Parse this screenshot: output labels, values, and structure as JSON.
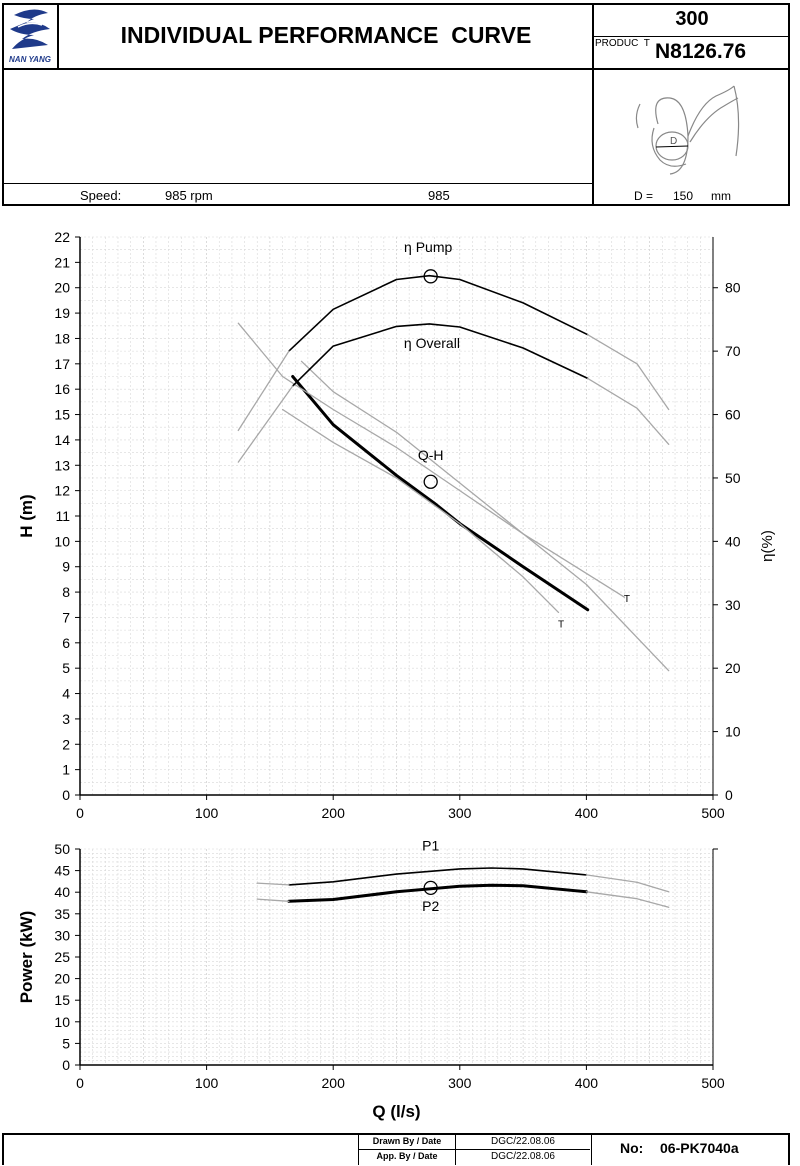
{
  "header": {
    "logo_text": "NAN YANG",
    "title": "INDIVIDUAL PERFORMANCE  CURVE",
    "size": "300",
    "product_label": "PRODUC  T",
    "product_code": "N8126.76",
    "speed_label": "Speed:",
    "speed_value": "985 rpm",
    "speed_center": "985",
    "diameter_label": "D =",
    "diameter_value": "150",
    "diameter_unit": "mm",
    "impeller_label": "D"
  },
  "footer": {
    "drawn_label": "Drawn By / Date",
    "drawn_value": "DGC/22.08.06",
    "app_label": "App. By / Date",
    "app_value": "DGC/22.08.06",
    "no_label": "No:",
    "no_value": "06-PK7040a"
  },
  "chart_data": [
    {
      "type": "line",
      "xlabel": "",
      "ylabel": "H (m)",
      "y2label": "η(%)",
      "xlim": [
        0,
        500
      ],
      "ylim": [
        0,
        22
      ],
      "y2lim": [
        0,
        88
      ],
      "xticks": [
        0,
        100,
        200,
        300,
        400,
        500
      ],
      "yticks": [
        0,
        1,
        2,
        3,
        4,
        5,
        6,
        7,
        8,
        9,
        10,
        11,
        12,
        13,
        14,
        15,
        16,
        17,
        18,
        19,
        20,
        21,
        22
      ],
      "y2ticks": [
        0,
        10,
        20,
        30,
        40,
        50,
        60,
        70,
        80
      ],
      "grid": true,
      "series": [
        {
          "name": "Q-H",
          "axis": "left",
          "style": "bold",
          "x": [
            168,
            200,
            250,
            280,
            300,
            350,
            401
          ],
          "y": [
            16.5,
            14.6,
            12.6,
            11.5,
            10.7,
            9.0,
            7.3
          ]
        },
        {
          "name": "",
          "axis": "left",
          "style": "thin-gray",
          "x": [
            125,
            160,
            200,
            250,
            300,
            350,
            400,
            465
          ],
          "y": [
            18.6,
            16.5,
            15.2,
            13.7,
            12.0,
            10.3,
            8.3,
            4.9
          ]
        },
        {
          "name": "",
          "axis": "left",
          "style": "thin-gray",
          "x": [
            175,
            200,
            250,
            300,
            350,
            430
          ],
          "y": [
            17.1,
            15.9,
            14.3,
            12.3,
            10.3,
            7.8
          ]
        },
        {
          "name": "",
          "axis": "left",
          "style": "thin-gray",
          "x": [
            160,
            200,
            250,
            300,
            350,
            378
          ],
          "y": [
            15.2,
            13.9,
            12.5,
            10.7,
            8.6,
            7.2
          ]
        },
        {
          "name": "η Pump",
          "axis": "right",
          "style": "normal",
          "x": [
            165,
            200,
            250,
            276,
            300,
            350,
            401
          ],
          "y": [
            70.0,
            76.6,
            81.3,
            81.9,
            81.3,
            77.6,
            72.6
          ]
        },
        {
          "name": "",
          "axis": "right",
          "style": "thin-gray",
          "x": [
            125,
            165
          ],
          "y": [
            57.5,
            70.0
          ]
        },
        {
          "name": "",
          "axis": "right",
          "style": "thin-gray",
          "x": [
            401,
            440,
            465
          ],
          "y": [
            72.6,
            68.0,
            60.8
          ]
        },
        {
          "name": "η Overall",
          "axis": "right",
          "style": "normal",
          "x": [
            168,
            200,
            250,
            276,
            300,
            350,
            401
          ],
          "y": [
            64.5,
            70.8,
            73.9,
            74.3,
            73.8,
            70.5,
            65.7
          ]
        },
        {
          "name": "",
          "axis": "right",
          "style": "thin-gray",
          "x": [
            125,
            168
          ],
          "y": [
            52.5,
            64.5
          ]
        },
        {
          "name": "",
          "axis": "right",
          "style": "thin-gray",
          "x": [
            401,
            440,
            465
          ],
          "y": [
            65.7,
            61.0,
            55.3
          ]
        }
      ],
      "markers": [
        {
          "axis": "left",
          "x": 277,
          "y": 12.35
        },
        {
          "axis": "right",
          "x": 277,
          "y": 81.8
        }
      ],
      "labels": [
        {
          "text": "η Pump",
          "axis": "right",
          "x": 275,
          "y": 85.6
        },
        {
          "text": "η Overall",
          "axis": "right",
          "x": 278,
          "y": 70.5
        },
        {
          "text": "Q-H",
          "axis": "left",
          "x": 277,
          "y": 13.2
        },
        {
          "text": "T",
          "axis": "left",
          "x": 432,
          "y": 7.6
        },
        {
          "text": "T",
          "axis": "left",
          "x": 380,
          "y": 6.6
        }
      ]
    },
    {
      "type": "line",
      "xlabel": "Q (l/s)",
      "ylabel": "Power (kW)",
      "xlim": [
        0,
        500
      ],
      "ylim": [
        0,
        50
      ],
      "xticks": [
        0,
        100,
        200,
        300,
        400,
        500
      ],
      "yticks": [
        0,
        5,
        10,
        15,
        20,
        25,
        30,
        35,
        40,
        45,
        50
      ],
      "grid": true,
      "series": [
        {
          "name": "P1",
          "style": "normal",
          "x": [
            165,
            200,
            250,
            300,
            325,
            350,
            400
          ],
          "y": [
            41.7,
            42.4,
            44.2,
            45.4,
            45.6,
            45.4,
            44.0
          ]
        },
        {
          "name": "",
          "style": "thin-gray",
          "x": [
            140,
            165
          ],
          "y": [
            42.1,
            41.7
          ]
        },
        {
          "name": "",
          "style": "thin-gray",
          "x": [
            400,
            440,
            465
          ],
          "y": [
            44.0,
            42.3,
            40.1
          ]
        },
        {
          "name": "P2",
          "style": "bold",
          "x": [
            165,
            200,
            250,
            300,
            325,
            350,
            400
          ],
          "y": [
            37.9,
            38.3,
            40.1,
            41.4,
            41.6,
            41.5,
            40.1
          ]
        },
        {
          "name": "",
          "style": "thin-gray",
          "x": [
            140,
            165
          ],
          "y": [
            38.4,
            37.9
          ]
        },
        {
          "name": "",
          "style": "thin-gray",
          "x": [
            400,
            440,
            465
          ],
          "y": [
            40.1,
            38.5,
            36.5
          ]
        }
      ],
      "markers": [
        {
          "x": 277,
          "y": 41.0
        }
      ],
      "labels": [
        {
          "text": "P1",
          "x": 277,
          "y": 49.6
        },
        {
          "text": "P2",
          "x": 277,
          "y": 35.7
        }
      ]
    }
  ]
}
